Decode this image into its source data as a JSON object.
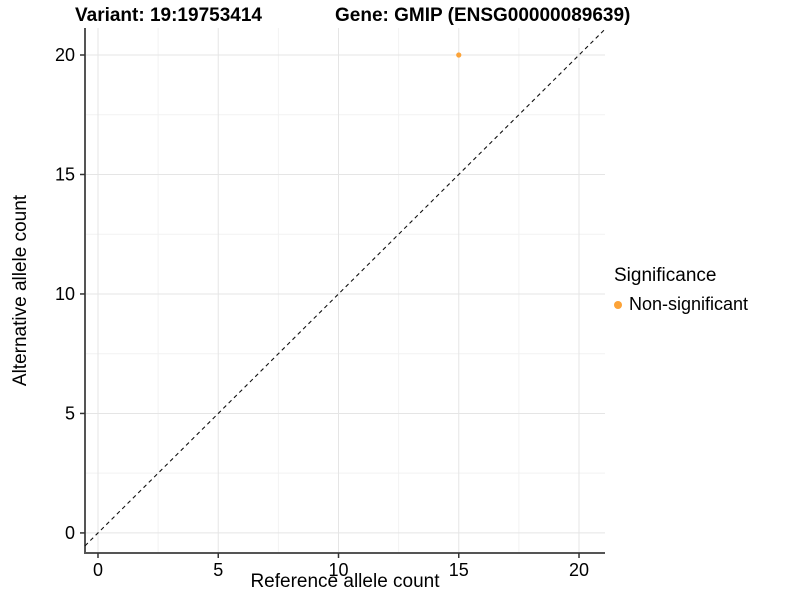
{
  "titles": {
    "variant": "Variant: 19:19753414",
    "gene": "Gene: GMIP (ENSG00000089639)"
  },
  "chart_data": {
    "type": "scatter",
    "xlabel": "Reference allele count",
    "ylabel": "Alternative allele count",
    "xticks": [
      0,
      5,
      10,
      15,
      20
    ],
    "yticks": [
      0,
      5,
      10,
      15,
      20
    ],
    "xlim": [
      -0.54,
      21.08
    ],
    "ylim": [
      -0.84,
      21.13
    ],
    "minor_grid_step": 2.5,
    "grid": "major+minor",
    "reference_line": {
      "type": "identity",
      "slope": 1,
      "intercept": 0,
      "style": "dashed",
      "color": "#111111"
    },
    "series": [
      {
        "name": "Non-significant",
        "color": "#FCA338",
        "points": [
          {
            "x": 15,
            "y": 20
          }
        ]
      }
    ],
    "legend_position": "right"
  },
  "legend": {
    "title": "Significance",
    "items": [
      {
        "label": "Non-significant",
        "color": "#FCA338"
      }
    ]
  }
}
